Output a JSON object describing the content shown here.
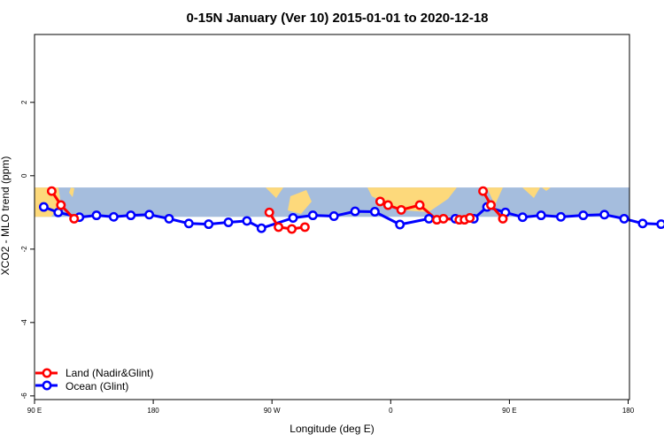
{
  "chart_data": {
    "type": "line",
    "title": "0-15N January (Ver 10)   2015-01-01 to 2020-12-18",
    "xlabel": "Longitude (deg E)",
    "ylabel": "XCO2 - MLO trend (ppm)",
    "xlim": [
      90,
      450
    ],
    "ylim": [
      -6.1,
      3.85
    ],
    "x_ticks": [
      {
        "value": 90,
        "label": "90 E"
      },
      {
        "value": 180,
        "label": "180"
      },
      {
        "value": 270,
        "label": "90 W"
      },
      {
        "value": 360,
        "label": "0"
      },
      {
        "value": 450,
        "label": "90 E"
      },
      {
        "value": 540,
        "label": "180"
      }
    ],
    "y_ticks": [
      {
        "value": 2,
        "label": "2"
      },
      {
        "value": 0,
        "label": "0"
      },
      {
        "value": -2,
        "label": "-2"
      },
      {
        "value": -4,
        "label": "-4"
      },
      {
        "value": -6,
        "label": "-6"
      }
    ],
    "map_band": {
      "lat_range": "0-15N",
      "y_range": [
        -1.12,
        -0.32
      ],
      "ocean_color": "#a5bddd",
      "land_color": "#fdd97b"
    },
    "legend_position": "bottom-left",
    "series": [
      {
        "name": "Land (Nadir&Glint)",
        "color": "#ff0000",
        "segments": [
          {
            "x": [
              103,
              110,
              120
            ],
            "y": [
              -0.42,
              -0.8,
              -1.17
            ]
          },
          {
            "x": [
              268,
              275,
              285,
              295
            ],
            "y": [
              -1.0,
              -1.4,
              -1.45,
              -1.4
            ]
          },
          {
            "x": [
              352,
              358,
              368,
              382,
              395,
              400,
              412,
              416,
              420
            ],
            "y": [
              -0.7,
              -0.8,
              -0.93,
              -0.8,
              -1.2,
              -1.17,
              -1.2,
              -1.2,
              -1.15
            ]
          },
          {
            "x": [
              430,
              436,
              445
            ],
            "y": [
              -0.42,
              -0.8,
              -1.17
            ]
          }
        ]
      },
      {
        "name": "Ocean (Glint)",
        "color": "#0000ff",
        "segments": [
          {
            "x": [
              97,
              108,
              124,
              137,
              150,
              163,
              177,
              192,
              207,
              222,
              237,
              251,
              262,
              286,
              301,
              317,
              333,
              348,
              367,
              389,
              409,
              423,
              433,
              447,
              460,
              474,
              489,
              506,
              522,
              537,
              551,
              565,
              579,
              594,
              609,
              623,
              637,
              652
            ],
            "y": [
              -0.85,
              -1.0,
              -1.13,
              -1.08,
              -1.12,
              -1.08,
              -1.06,
              -1.17,
              -1.3,
              -1.32,
              -1.27,
              -1.23,
              -1.43,
              -1.15,
              -1.08,
              -1.1,
              -0.97,
              -0.98,
              -1.33,
              -1.17,
              -1.17,
              -1.17,
              -0.85,
              -1.0,
              -1.13,
              -1.08,
              -1.12,
              -1.08,
              -1.06,
              -1.17,
              -1.3,
              -1.32,
              -1.27,
              -1.23,
              -1.43,
              -1.15,
              -1.08,
              -1.1
            ]
          }
        ]
      }
    ]
  }
}
